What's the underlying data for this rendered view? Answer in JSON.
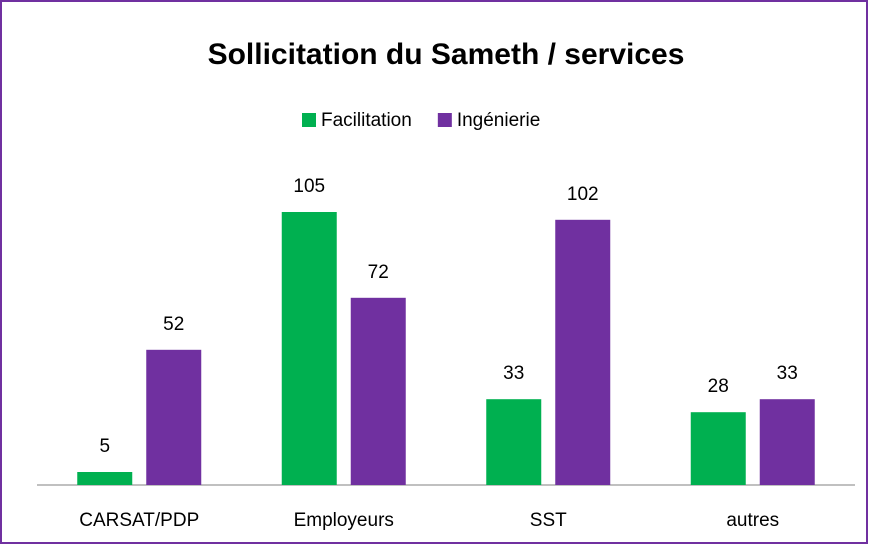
{
  "chart_data": {
    "type": "bar",
    "title": "Sollicitation du Sameth / services",
    "categories": [
      "CARSAT/PDP",
      "Employeurs",
      "SST",
      "autres"
    ],
    "series": [
      {
        "name": "Facilitation",
        "color": "#00b050",
        "values": [
          5,
          105,
          33,
          28
        ]
      },
      {
        "name": "Ingénierie",
        "color": "#7030a0",
        "values": [
          52,
          72,
          102,
          33
        ]
      }
    ],
    "legend": "top"
  }
}
